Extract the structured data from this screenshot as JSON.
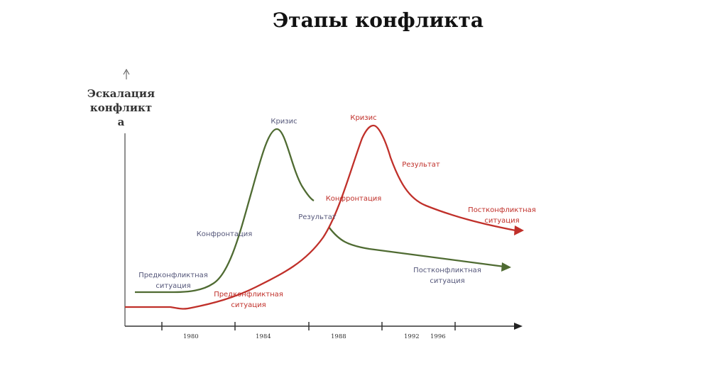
{
  "title": "Этапы конфликта",
  "y_axis_label": [
    "Эскалация",
    "конфликт",
    "а"
  ],
  "x_ticks": [
    "1980",
    "1984",
    "1988",
    "1992",
    "1996"
  ],
  "colors": {
    "green": "#4f6b32",
    "red": "#c0302a",
    "green_text": "#55577a",
    "red_text": "#c0302a",
    "axis": "#333333"
  },
  "green_labels": {
    "crisis": "Кризис",
    "confrontation": "Конфронтация",
    "result": "Результат",
    "pre": [
      "Предконфликтная",
      "ситуация"
    ],
    "post": [
      "Постконфликтная",
      "ситуация"
    ]
  },
  "red_labels": {
    "crisis": "Кризис",
    "confrontation": "Конфронтация",
    "result": "Результат",
    "pre": [
      "Предконфликтная",
      "ситуация"
    ],
    "post": [
      "Постконфликтная",
      "ситуация"
    ]
  }
}
